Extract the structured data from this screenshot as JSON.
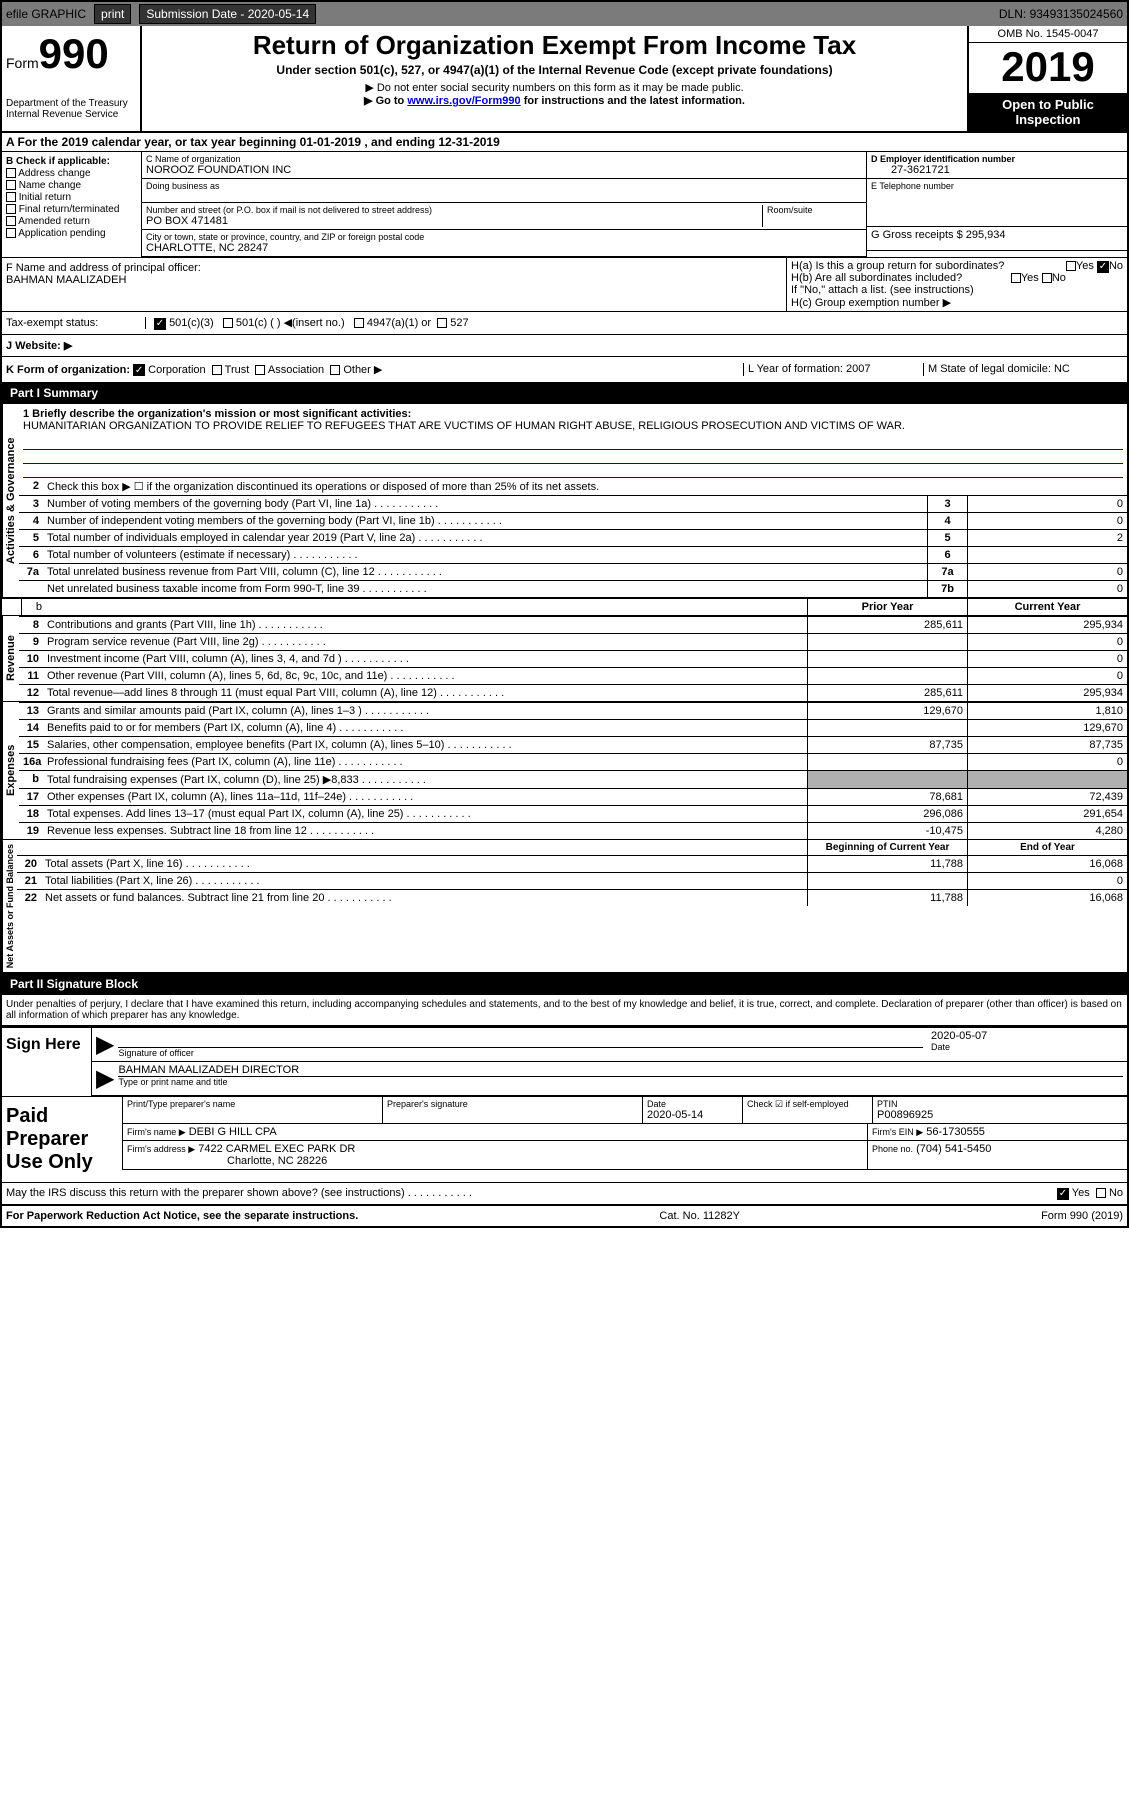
{
  "topbar": {
    "efile": "efile GRAPHIC",
    "print": "print",
    "subdate_label": "Submission Date - 2020-05-14",
    "dln": "DLN: 93493135024560"
  },
  "header": {
    "form_word": "Form",
    "form_num": "990",
    "dept": "Department of the Treasury",
    "irs": "Internal Revenue Service",
    "title": "Return of Organization Exempt From Income Tax",
    "subtitle": "Under section 501(c), 527, or 4947(a)(1) of the Internal Revenue Code (except private foundations)",
    "note1": "▶ Do not enter social security numbers on this form as it may be made public.",
    "note2_pre": "▶ Go to ",
    "note2_link": "www.irs.gov/Form990",
    "note2_post": " for instructions and the latest information.",
    "omb": "OMB No. 1545-0047",
    "year": "2019",
    "open": "Open to Public Inspection"
  },
  "section_a": "A For the 2019 calendar year, or tax year beginning 01-01-2019   , and ending 12-31-2019",
  "col_b": {
    "label": "B Check if applicable:",
    "addr": "Address change",
    "name": "Name change",
    "init": "Initial return",
    "final": "Final return/terminated",
    "amend": "Amended return",
    "app": "Application pending"
  },
  "col_c": {
    "name_label": "C Name of organization",
    "name": "NOROOZ FOUNDATION INC",
    "dba": "Doing business as",
    "addr_label": "Number and street (or P.O. box if mail is not delivered to street address)",
    "addr": "PO BOX 471481",
    "room": "Room/suite",
    "city_label": "City or town, state or province, country, and ZIP or foreign postal code",
    "city": "CHARLOTTE, NC  28247"
  },
  "col_d": {
    "ein_label": "D Employer identification number",
    "ein": "27-3621721",
    "tel_label": "E Telephone number",
    "tel": "",
    "gross_label": "G Gross receipts $ 295,934"
  },
  "col_f": {
    "label": "F  Name and address of principal officer:",
    "name": "BAHMAN MAALIZADEH"
  },
  "col_h": {
    "a": "H(a)  Is this a group return for subordinates?",
    "b": "H(b)  Are all subordinates included?",
    "b_note": "If \"No,\" attach a list. (see instructions)",
    "c": "H(c)  Group exemption number ▶",
    "yes": "Yes",
    "no": "No"
  },
  "tax_exempt": {
    "label": "Tax-exempt status:",
    "opt1": "501(c)(3)",
    "opt2": "501(c) (   ) ◀(insert no.)",
    "opt3": "4947(a)(1) or",
    "opt4": "527"
  },
  "j": "J    Website: ▶",
  "k": {
    "label": "K Form of organization:",
    "corp": "Corporation",
    "trust": "Trust",
    "assoc": "Association",
    "other": "Other ▶"
  },
  "l": {
    "label": "L Year of formation: 2007"
  },
  "m": {
    "label": "M State of legal domicile: NC"
  },
  "part1": {
    "title": "Part I     Summary",
    "line1_label": "1  Briefly describe the organization's mission or most significant activities:",
    "mission": "HUMANITARIAN ORGANIZATION TO PROVIDE RELIEF TO REFUGEES THAT ARE VUCTIMS OF HUMAN RIGHT ABUSE, RELIGIOUS PROSECUTION AND VICTIMS OF WAR."
  },
  "activities": {
    "vert": "Activities & Governance",
    "l2": "Check this box ▶ ☐ if the organization discontinued its operations or disposed of more than 25% of its net assets.",
    "rows": [
      {
        "n": "3",
        "d": "Number of voting members of the governing body (Part VI, line 1a)",
        "box": "3",
        "v": "0"
      },
      {
        "n": "4",
        "d": "Number of independent voting members of the governing body (Part VI, line 1b)",
        "box": "4",
        "v": "0"
      },
      {
        "n": "5",
        "d": "Total number of individuals employed in calendar year 2019 (Part V, line 2a)",
        "box": "5",
        "v": "2"
      },
      {
        "n": "6",
        "d": "Total number of volunteers (estimate if necessary)",
        "box": "6",
        "v": ""
      },
      {
        "n": "7a",
        "d": "Total unrelated business revenue from Part VIII, column (C), line 12",
        "box": "7a",
        "v": "0"
      },
      {
        "n": "",
        "d": "Net unrelated business taxable income from Form 990-T, line 39",
        "box": "7b",
        "v": "0"
      }
    ]
  },
  "pycy": {
    "prior": "Prior Year",
    "current": "Current Year"
  },
  "revenue": {
    "vert": "Revenue",
    "rows": [
      {
        "n": "8",
        "d": "Contributions and grants (Part VIII, line 1h)",
        "py": "285,611",
        "cy": "295,934"
      },
      {
        "n": "9",
        "d": "Program service revenue (Part VIII, line 2g)",
        "py": "",
        "cy": "0"
      },
      {
        "n": "10",
        "d": "Investment income (Part VIII, column (A), lines 3, 4, and 7d )",
        "py": "",
        "cy": "0"
      },
      {
        "n": "11",
        "d": "Other revenue (Part VIII, column (A), lines 5, 6d, 8c, 9c, 10c, and 11e)",
        "py": "",
        "cy": "0"
      },
      {
        "n": "12",
        "d": "Total revenue—add lines 8 through 11 (must equal Part VIII, column (A), line 12)",
        "py": "285,611",
        "cy": "295,934"
      }
    ]
  },
  "expenses": {
    "vert": "Expenses",
    "rows": [
      {
        "n": "13",
        "d": "Grants and similar amounts paid (Part IX, column (A), lines 1–3 )",
        "py": "129,670",
        "cy": "1,810"
      },
      {
        "n": "14",
        "d": "Benefits paid to or for members (Part IX, column (A), line 4)",
        "py": "",
        "cy": "129,670"
      },
      {
        "n": "15",
        "d": "Salaries, other compensation, employee benefits (Part IX, column (A), lines 5–10)",
        "py": "87,735",
        "cy": "87,735"
      },
      {
        "n": "16a",
        "d": "Professional fundraising fees (Part IX, column (A), line 11e)",
        "py": "",
        "cy": "0"
      },
      {
        "n": "b",
        "d": "Total fundraising expenses (Part IX, column (D), line 25) ▶8,833",
        "py": "",
        "cy": "",
        "shaded": true
      },
      {
        "n": "17",
        "d": "Other expenses (Part IX, column (A), lines 11a–11d, 11f–24e)",
        "py": "78,681",
        "cy": "72,439"
      },
      {
        "n": "18",
        "d": "Total expenses. Add lines 13–17 (must equal Part IX, column (A), line 25)",
        "py": "296,086",
        "cy": "291,654"
      },
      {
        "n": "19",
        "d": "Revenue less expenses. Subtract line 18 from line 12",
        "py": "-10,475",
        "cy": "4,280"
      }
    ]
  },
  "netassets": {
    "vert": "Net Assets or Fund Balances",
    "hdr_beg": "Beginning of Current Year",
    "hdr_end": "End of Year",
    "rows": [
      {
        "n": "20",
        "d": "Total assets (Part X, line 16)",
        "py": "11,788",
        "cy": "16,068"
      },
      {
        "n": "21",
        "d": "Total liabilities (Part X, line 26)",
        "py": "",
        "cy": "0"
      },
      {
        "n": "22",
        "d": "Net assets or fund balances. Subtract line 21 from line 20",
        "py": "11,788",
        "cy": "16,068"
      }
    ]
  },
  "part2": {
    "title": "Part II     Signature Block",
    "penalty": "Under penalties of perjury, I declare that I have examined this return, including accompanying schedules and statements, and to the best of my knowledge and belief, it is true, correct, and complete. Declaration of preparer (other than officer) is based on all information of which preparer has any knowledge."
  },
  "sign": {
    "here": "Sign Here",
    "sig_label": "Signature of officer",
    "date_label": "Date",
    "date": "2020-05-07",
    "name": "BAHMAN MAALIZADEH  DIRECTOR",
    "name_label": "Type or print name and title"
  },
  "prep": {
    "label": "Paid Preparer Use Only",
    "print_label": "Print/Type preparer's name",
    "sig_label": "Preparer's signature",
    "date_label": "Date",
    "date": "2020-05-14",
    "check_label": "Check ☑ if self-employed",
    "ptin_label": "PTIN",
    "ptin": "P00896925",
    "firm_label": "Firm's name    ▶",
    "firm": "DEBI G HILL CPA",
    "ein_label": "Firm's EIN ▶",
    "ein": "56-1730555",
    "addr_label": "Firm's address ▶",
    "addr": "7422 CARMEL EXEC PARK DR",
    "city": "Charlotte, NC  28226",
    "phone_label": "Phone no.",
    "phone": "(704) 541-5450"
  },
  "discuss": {
    "q": "May the IRS discuss this return with the preparer shown above? (see instructions)",
    "yes": "Yes",
    "no": "No"
  },
  "footer": {
    "left": "For Paperwork Reduction Act Notice, see the separate instructions.",
    "mid": "Cat. No. 11282Y",
    "right": "Form 990 (2019)"
  }
}
